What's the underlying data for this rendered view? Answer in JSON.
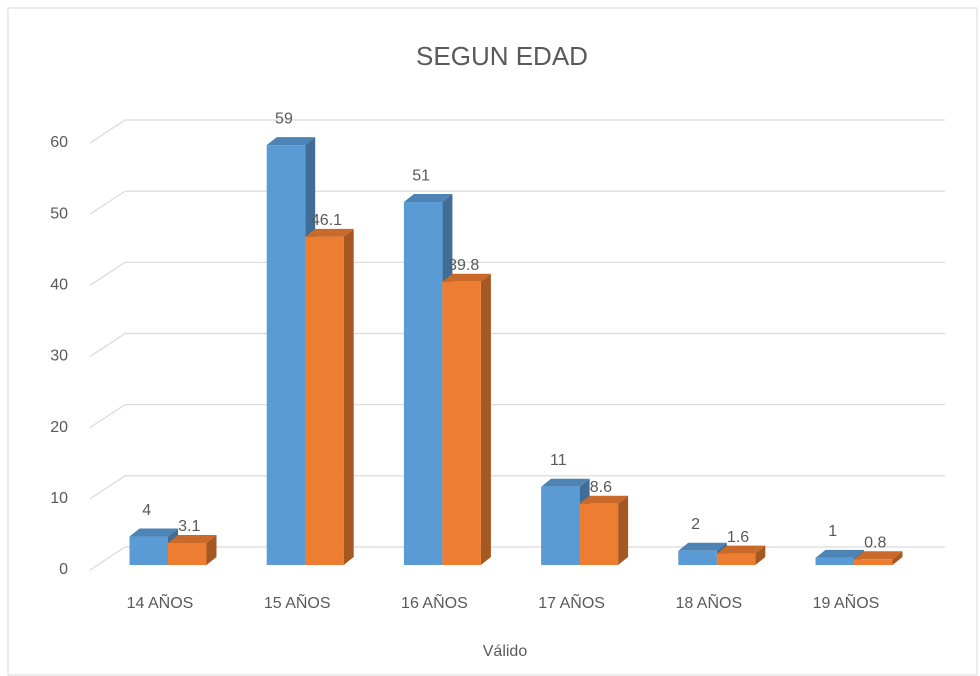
{
  "chart_data": {
    "type": "bar3d",
    "title": "SEGUN EDAD",
    "categories": [
      "14 AÑOS",
      "15 AÑOS",
      "16 AÑOS",
      "17 AÑOS",
      "18 AÑOS",
      "19 AÑOS"
    ],
    "series": [
      {
        "color": "#5b9bd5",
        "values": [
          4,
          59,
          51,
          11,
          2,
          1
        ]
      },
      {
        "color": "#ed7d31",
        "values": [
          3.1,
          46.1,
          39.8,
          8.6,
          1.6,
          0.8
        ]
      }
    ],
    "x_label": "Válido",
    "ylim": [
      0,
      60
    ],
    "yticks": [
      0,
      10,
      20,
      30,
      40,
      50,
      60
    ],
    "grid": true
  }
}
